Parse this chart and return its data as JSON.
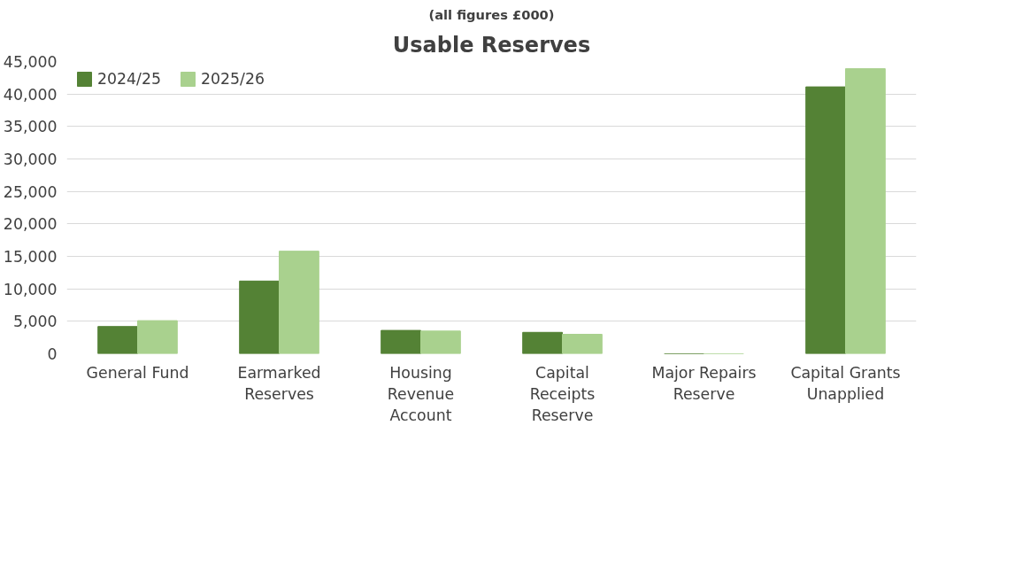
{
  "chart_data": {
    "type": "bar",
    "title": "Usable Reserves",
    "subtitle": "(all figures £000)",
    "categories": [
      "General Fund",
      "Earmarked Reserves",
      "Housing Revenue Account",
      "Capital Receipts Reserve",
      "Major Repairs Reserve",
      "Capital Grants Unapplied"
    ],
    "series": [
      {
        "name": "2024/25",
        "color": "#548235",
        "values": [
          4200,
          11200,
          3600,
          3300,
          0,
          41100
        ]
      },
      {
        "name": "2025/26",
        "color": "#a9d18e",
        "values": [
          5100,
          15800,
          3500,
          3000,
          0,
          43900
        ]
      }
    ],
    "ylim": [
      0,
      45000
    ],
    "yticks": [
      0,
      {
        "value": 5000,
        "label": "5,000"
      },
      {
        "value": 10000,
        "label": "10,000"
      },
      {
        "value": 15000,
        "label": "15,000"
      },
      {
        "value": 20000,
        "label": "20,000"
      },
      {
        "value": 25000,
        "label": "25,000"
      },
      {
        "value": 30000,
        "label": "30,000"
      },
      {
        "value": 35000,
        "label": "35,000"
      },
      {
        "value": 40000,
        "label": "40,000"
      },
      {
        "value": 45000,
        "label": "45,000"
      }
    ],
    "grid": "y",
    "legend": "top left"
  }
}
